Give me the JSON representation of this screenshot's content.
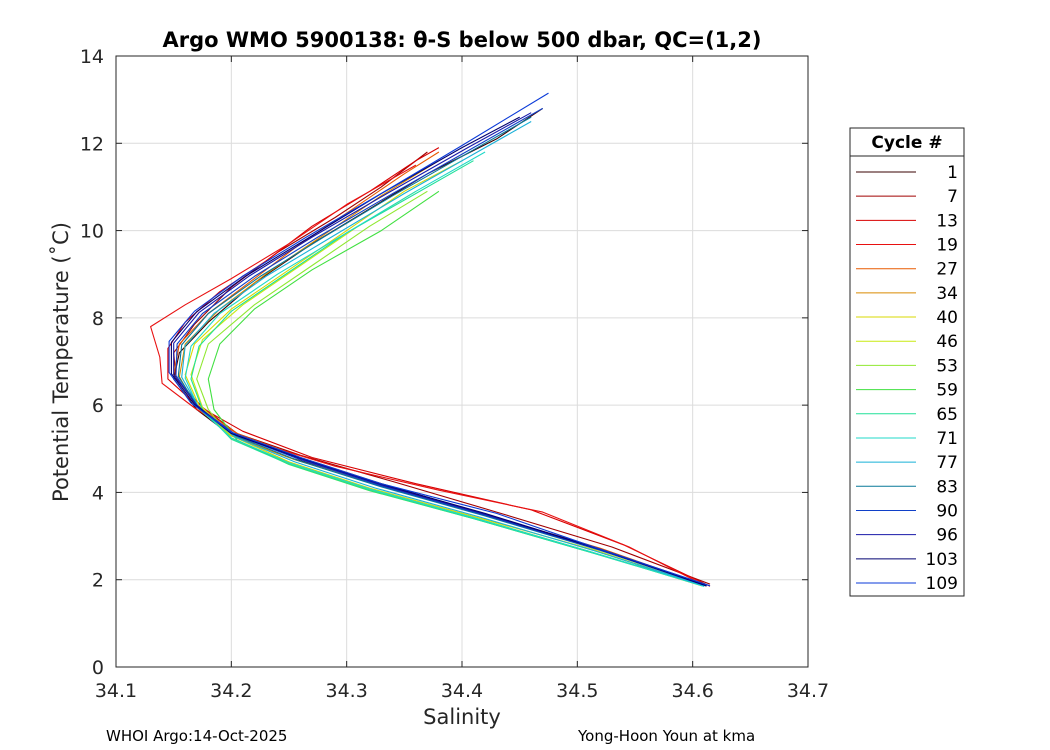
{
  "chart_data": {
    "type": "line",
    "title": "Argo WMO 5900138: θ-S below 500 dbar,  QC=(1,2)",
    "xlabel": "Salinity",
    "ylabel": "Potential Temperature (˚C)",
    "xlim": [
      34.1,
      34.7
    ],
    "ylim": [
      0,
      14
    ],
    "xticks": [
      "34.1",
      "34.2",
      "34.3",
      "34.4",
      "34.5",
      "34.6",
      "34.7"
    ],
    "yticks": [
      "0",
      "2",
      "4",
      "6",
      "8",
      "10",
      "12",
      "14"
    ],
    "grid": true,
    "legend": {
      "title": "Cycle #",
      "placement": "right",
      "entries": [
        {
          "label": "1",
          "color": "#3a0000"
        },
        {
          "label": "7",
          "color": "#a00000"
        },
        {
          "label": "13",
          "color": "#d80000"
        },
        {
          "label": "19",
          "color": "#e81010"
        },
        {
          "label": "27",
          "color": "#e85a00"
        },
        {
          "label": "34",
          "color": "#d98a00"
        },
        {
          "label": "40",
          "color": "#d8d800"
        },
        {
          "label": "46",
          "color": "#c8ea10"
        },
        {
          "label": "53",
          "color": "#90e830"
        },
        {
          "label": "59",
          "color": "#40e040"
        },
        {
          "label": "65",
          "color": "#20e098"
        },
        {
          "label": "71",
          "color": "#20d8c8"
        },
        {
          "label": "77",
          "color": "#18b0d8"
        },
        {
          "label": "83",
          "color": "#087898"
        },
        {
          "label": "90",
          "color": "#1040c8"
        },
        {
          "label": "96",
          "color": "#1818a8"
        },
        {
          "label": "103",
          "color": "#000070"
        },
        {
          "label": "109",
          "color": "#0a3ad8"
        }
      ]
    },
    "series": [
      {
        "name": "1",
        "color": "#3a0000",
        "points": [
          [
            34.61,
            1.9
          ],
          [
            34.52,
            2.7
          ],
          [
            34.42,
            3.5
          ],
          [
            34.33,
            4.2
          ],
          [
            34.25,
            4.8
          ],
          [
            34.2,
            5.3
          ],
          [
            34.17,
            5.9
          ],
          [
            34.15,
            6.6
          ],
          [
            34.155,
            7.2
          ],
          [
            34.18,
            7.9
          ],
          [
            34.22,
            8.8
          ],
          [
            34.27,
            9.7
          ],
          [
            34.32,
            10.5
          ],
          [
            34.37,
            11.3
          ],
          [
            34.43,
            12.1
          ],
          [
            34.47,
            12.8
          ]
        ]
      },
      {
        "name": "7",
        "color": "#a00000",
        "points": [
          [
            34.615,
            1.9
          ],
          [
            34.53,
            2.75
          ],
          [
            34.43,
            3.55
          ],
          [
            34.34,
            4.25
          ],
          [
            34.26,
            4.85
          ],
          [
            34.205,
            5.35
          ],
          [
            34.175,
            5.95
          ],
          [
            34.152,
            6.6
          ],
          [
            34.15,
            7.2
          ],
          [
            34.168,
            7.85
          ],
          [
            34.2,
            8.7
          ],
          [
            34.24,
            9.5
          ],
          [
            34.29,
            10.3
          ],
          [
            34.33,
            11.0
          ],
          [
            34.37,
            11.8
          ]
        ]
      },
      {
        "name": "13",
        "color": "#d80000",
        "points": [
          [
            34.615,
            1.85
          ],
          [
            34.54,
            2.8
          ],
          [
            34.46,
            3.6
          ],
          [
            34.36,
            4.2
          ],
          [
            34.27,
            4.8
          ],
          [
            34.21,
            5.4
          ],
          [
            34.17,
            6.0
          ],
          [
            34.145,
            6.6
          ],
          [
            34.145,
            7.3
          ],
          [
            34.16,
            7.9
          ],
          [
            34.19,
            8.6
          ],
          [
            34.23,
            9.3
          ],
          [
            34.27,
            10.1
          ],
          [
            34.32,
            10.9
          ],
          [
            34.36,
            11.6
          ],
          [
            34.38,
            11.9
          ]
        ]
      },
      {
        "name": "19",
        "color": "#e81010",
        "points": [
          [
            34.612,
            1.85
          ],
          [
            34.545,
            2.75
          ],
          [
            34.47,
            3.55
          ],
          [
            34.38,
            4.05
          ],
          [
            34.29,
            4.6
          ],
          [
            34.215,
            5.2
          ],
          [
            34.17,
            5.9
          ],
          [
            34.14,
            6.5
          ],
          [
            34.138,
            7.1
          ],
          [
            34.13,
            7.8
          ],
          [
            34.16,
            8.3
          ],
          [
            34.2,
            8.9
          ],
          [
            34.25,
            9.7
          ],
          [
            34.3,
            10.6
          ],
          [
            34.36,
            11.5
          ]
        ]
      },
      {
        "name": "27",
        "color": "#e85a00",
        "points": [
          [
            34.612,
            1.87
          ],
          [
            34.52,
            2.72
          ],
          [
            34.42,
            3.5
          ],
          [
            34.33,
            4.2
          ],
          [
            34.26,
            4.8
          ],
          [
            34.205,
            5.35
          ],
          [
            34.17,
            6.0
          ],
          [
            34.15,
            6.7
          ],
          [
            34.155,
            7.4
          ],
          [
            34.18,
            8.1
          ],
          [
            34.22,
            8.9
          ],
          [
            34.26,
            9.7
          ],
          [
            34.3,
            10.4
          ],
          [
            34.35,
            11.3
          ],
          [
            34.38,
            11.8
          ]
        ]
      },
      {
        "name": "34",
        "color": "#d98a00",
        "points": [
          [
            34.61,
            1.87
          ],
          [
            34.52,
            2.7
          ],
          [
            34.42,
            3.48
          ],
          [
            34.33,
            4.15
          ],
          [
            34.255,
            4.75
          ],
          [
            34.2,
            5.3
          ],
          [
            34.17,
            5.95
          ],
          [
            34.155,
            6.65
          ],
          [
            34.16,
            7.4
          ],
          [
            34.19,
            8.2
          ],
          [
            34.23,
            9.0
          ],
          [
            34.28,
            9.9
          ],
          [
            34.33,
            10.8
          ],
          [
            34.38,
            11.6
          ]
        ]
      },
      {
        "name": "40",
        "color": "#d8d800",
        "points": [
          [
            34.608,
            1.87
          ],
          [
            34.515,
            2.68
          ],
          [
            34.41,
            3.45
          ],
          [
            34.32,
            4.1
          ],
          [
            34.25,
            4.7
          ],
          [
            34.2,
            5.3
          ],
          [
            34.172,
            6.0
          ],
          [
            34.16,
            6.7
          ],
          [
            34.168,
            7.4
          ],
          [
            34.2,
            8.2
          ],
          [
            34.25,
            9.1
          ],
          [
            34.3,
            10.0
          ],
          [
            34.35,
            10.9
          ],
          [
            34.4,
            11.6
          ]
        ]
      },
      {
        "name": "46",
        "color": "#c8ea10",
        "points": [
          [
            34.608,
            1.86
          ],
          [
            34.51,
            2.65
          ],
          [
            34.41,
            3.43
          ],
          [
            34.32,
            4.08
          ],
          [
            34.25,
            4.68
          ],
          [
            34.2,
            5.25
          ],
          [
            34.175,
            5.95
          ],
          [
            34.165,
            6.7
          ],
          [
            34.175,
            7.5
          ],
          [
            34.21,
            8.3
          ],
          [
            34.26,
            9.2
          ],
          [
            34.31,
            10.1
          ],
          [
            34.36,
            10.9
          ]
        ]
      },
      {
        "name": "53",
        "color": "#90e830",
        "points": [
          [
            34.61,
            1.86
          ],
          [
            34.51,
            2.65
          ],
          [
            34.41,
            3.42
          ],
          [
            34.32,
            4.06
          ],
          [
            34.25,
            4.66
          ],
          [
            34.2,
            5.24
          ],
          [
            34.18,
            5.9
          ],
          [
            34.17,
            6.6
          ],
          [
            34.18,
            7.4
          ],
          [
            34.22,
            8.3
          ],
          [
            34.27,
            9.2
          ],
          [
            34.32,
            10.1
          ],
          [
            34.37,
            10.9
          ]
        ]
      },
      {
        "name": "59",
        "color": "#40e040",
        "points": [
          [
            34.612,
            1.86
          ],
          [
            34.51,
            2.64
          ],
          [
            34.41,
            3.4
          ],
          [
            34.32,
            4.04
          ],
          [
            34.25,
            4.64
          ],
          [
            34.205,
            5.2
          ],
          [
            34.185,
            5.9
          ],
          [
            34.18,
            6.6
          ],
          [
            34.19,
            7.4
          ],
          [
            34.22,
            8.2
          ],
          [
            34.27,
            9.1
          ],
          [
            34.33,
            10.0
          ],
          [
            34.38,
            10.9
          ]
        ]
      },
      {
        "name": "65",
        "color": "#20e098",
        "points": [
          [
            34.61,
            1.85
          ],
          [
            34.51,
            2.64
          ],
          [
            34.41,
            3.4
          ],
          [
            34.32,
            4.05
          ],
          [
            34.25,
            4.65
          ],
          [
            34.2,
            5.22
          ],
          [
            34.175,
            5.9
          ],
          [
            34.165,
            6.6
          ],
          [
            34.172,
            7.35
          ],
          [
            34.2,
            8.15
          ],
          [
            34.25,
            9.05
          ],
          [
            34.3,
            9.95
          ],
          [
            34.36,
            10.85
          ],
          [
            34.41,
            11.6
          ]
        ]
      },
      {
        "name": "71",
        "color": "#20d8c8",
        "points": [
          [
            34.61,
            1.85
          ],
          [
            34.51,
            2.65
          ],
          [
            34.41,
            3.42
          ],
          [
            34.32,
            4.08
          ],
          [
            34.25,
            4.68
          ],
          [
            34.2,
            5.25
          ],
          [
            34.172,
            5.92
          ],
          [
            34.16,
            6.62
          ],
          [
            34.165,
            7.35
          ],
          [
            34.19,
            8.1
          ],
          [
            34.24,
            9.0
          ],
          [
            34.3,
            9.95
          ],
          [
            34.36,
            10.9
          ],
          [
            34.42,
            11.8
          ]
        ]
      },
      {
        "name": "77",
        "color": "#18b0d8",
        "points": [
          [
            34.61,
            1.86
          ],
          [
            34.515,
            2.66
          ],
          [
            34.415,
            3.44
          ],
          [
            34.325,
            4.1
          ],
          [
            34.255,
            4.7
          ],
          [
            34.203,
            5.27
          ],
          [
            34.172,
            5.94
          ],
          [
            34.157,
            6.64
          ],
          [
            34.16,
            7.36
          ],
          [
            34.185,
            8.1
          ],
          [
            34.23,
            8.95
          ],
          [
            34.29,
            9.9
          ],
          [
            34.35,
            10.85
          ],
          [
            34.42,
            11.9
          ],
          [
            34.46,
            12.5
          ]
        ]
      },
      {
        "name": "83",
        "color": "#087898",
        "points": [
          [
            34.612,
            1.86
          ],
          [
            34.52,
            2.67
          ],
          [
            34.42,
            3.46
          ],
          [
            34.33,
            4.13
          ],
          [
            34.258,
            4.73
          ],
          [
            34.204,
            5.29
          ],
          [
            34.171,
            5.96
          ],
          [
            34.154,
            6.66
          ],
          [
            34.157,
            7.38
          ],
          [
            34.18,
            8.1
          ],
          [
            34.225,
            8.95
          ],
          [
            34.28,
            9.85
          ],
          [
            34.34,
            10.8
          ],
          [
            34.41,
            11.85
          ],
          [
            34.46,
            12.6
          ]
        ]
      },
      {
        "name": "90",
        "color": "#1040c8",
        "points": [
          [
            34.612,
            1.86
          ],
          [
            34.52,
            2.68
          ],
          [
            34.42,
            3.48
          ],
          [
            34.33,
            4.15
          ],
          [
            34.26,
            4.75
          ],
          [
            34.205,
            5.3
          ],
          [
            34.17,
            5.98
          ],
          [
            34.152,
            6.68
          ],
          [
            34.153,
            7.4
          ],
          [
            34.175,
            8.1
          ],
          [
            34.22,
            8.95
          ],
          [
            34.275,
            9.85
          ],
          [
            34.34,
            10.85
          ],
          [
            34.41,
            11.9
          ],
          [
            34.47,
            12.8
          ]
        ]
      },
      {
        "name": "96",
        "color": "#1818a8",
        "points": [
          [
            34.612,
            1.86
          ],
          [
            34.52,
            2.69
          ],
          [
            34.42,
            3.5
          ],
          [
            34.33,
            4.17
          ],
          [
            34.26,
            4.77
          ],
          [
            34.2,
            5.35
          ],
          [
            34.17,
            6.0
          ],
          [
            34.15,
            6.7
          ],
          [
            34.15,
            7.42
          ],
          [
            34.172,
            8.12
          ],
          [
            34.215,
            8.95
          ],
          [
            34.27,
            9.85
          ],
          [
            34.335,
            10.85
          ],
          [
            34.405,
            11.9
          ],
          [
            34.46,
            12.7
          ]
        ]
      },
      {
        "name": "103",
        "color": "#000070",
        "points": [
          [
            34.612,
            1.86
          ],
          [
            34.52,
            2.7
          ],
          [
            34.42,
            3.52
          ],
          [
            34.33,
            4.19
          ],
          [
            34.26,
            4.79
          ],
          [
            34.2,
            5.35
          ],
          [
            34.168,
            6.02
          ],
          [
            34.148,
            6.72
          ],
          [
            34.148,
            7.44
          ],
          [
            34.17,
            8.14
          ],
          [
            34.212,
            8.95
          ],
          [
            34.268,
            9.85
          ],
          [
            34.33,
            10.85
          ],
          [
            34.4,
            11.9
          ],
          [
            34.45,
            12.6
          ]
        ]
      },
      {
        "name": "109",
        "color": "#0a3ad8",
        "points": [
          [
            34.615,
            1.86
          ],
          [
            34.52,
            2.7
          ],
          [
            34.43,
            3.52
          ],
          [
            34.33,
            4.2
          ],
          [
            34.26,
            4.8
          ],
          [
            34.2,
            5.38
          ],
          [
            34.165,
            6.05
          ],
          [
            34.146,
            6.75
          ],
          [
            34.146,
            7.46
          ],
          [
            34.168,
            8.15
          ],
          [
            34.21,
            8.96
          ],
          [
            34.265,
            9.85
          ],
          [
            34.33,
            10.85
          ],
          [
            34.4,
            11.95
          ],
          [
            34.475,
            13.15
          ]
        ]
      }
    ]
  },
  "footer": {
    "left": "WHOI Argo:14-Oct-2025",
    "right": "Yong-Hoon Youn at kma"
  }
}
